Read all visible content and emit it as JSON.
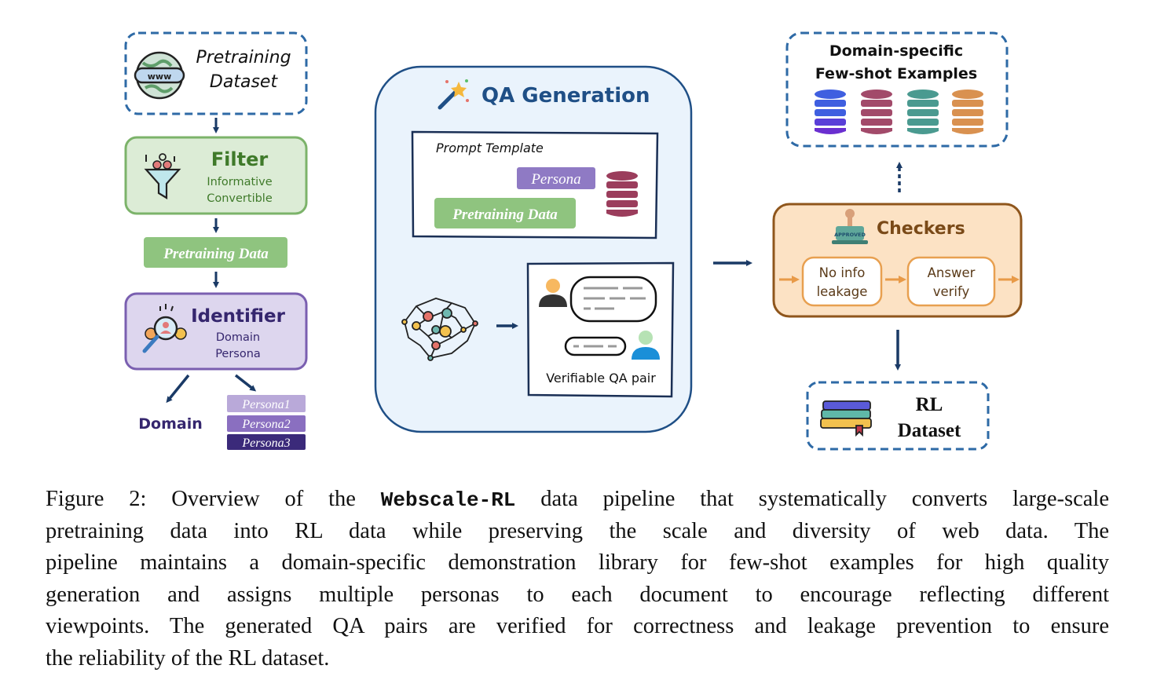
{
  "diagram": {
    "pretraining_dataset": {
      "line1": "Pretraining",
      "line2": "Dataset"
    },
    "filter": {
      "title": "Filter",
      "items": [
        "Informative",
        "Convertible"
      ]
    },
    "pretraining_data_label": "Pretraining Data",
    "identifier": {
      "title": "Identifier",
      "items": [
        "Domain",
        "Persona"
      ]
    },
    "domain_label": "Domain",
    "personas": [
      "Persona1",
      "Persona2",
      "Persona3"
    ],
    "qa_generation": {
      "title": "QA Generation",
      "prompt_template": "Prompt Template",
      "persona": "Persona",
      "pretraining_data": "Pretraining Data",
      "qa_pair_label": "Verifiable QA pair"
    },
    "few_shot": {
      "line1": "Domain-specific",
      "line2": "Few-shot Examples"
    },
    "checkers": {
      "title": "Checkers",
      "stamp_text": "APPROVED",
      "step1": [
        "No info",
        "leakage"
      ],
      "step2": [
        "Answer",
        "verify"
      ]
    },
    "rl_dataset": {
      "line1": "RL",
      "line2": "Dataset"
    },
    "colors": {
      "navy": "#1f4f86",
      "green": "#8fc47f",
      "purple": "#8f7ac4",
      "orange": "#e89a48",
      "dashed_border": "#2e6aa6"
    }
  },
  "caption": {
    "line1_prefix": "Figure 2: Overview of the ",
    "line1_code": "Webscale-RL",
    "line1_suffix": " data pipeline that systematically converts large-scale",
    "lines": [
      "pretraining data into RL data while preserving the scale and diversity of web data.  The",
      "pipeline maintains a domain-specific demonstration library for few-shot examples for high quality",
      "generation and assigns multiple personas to each document to encourage reflecting different",
      "viewpoints. The generated QA pairs are verified for correctness and leakage prevention to ensure",
      "the reliability of the RL dataset."
    ]
  }
}
